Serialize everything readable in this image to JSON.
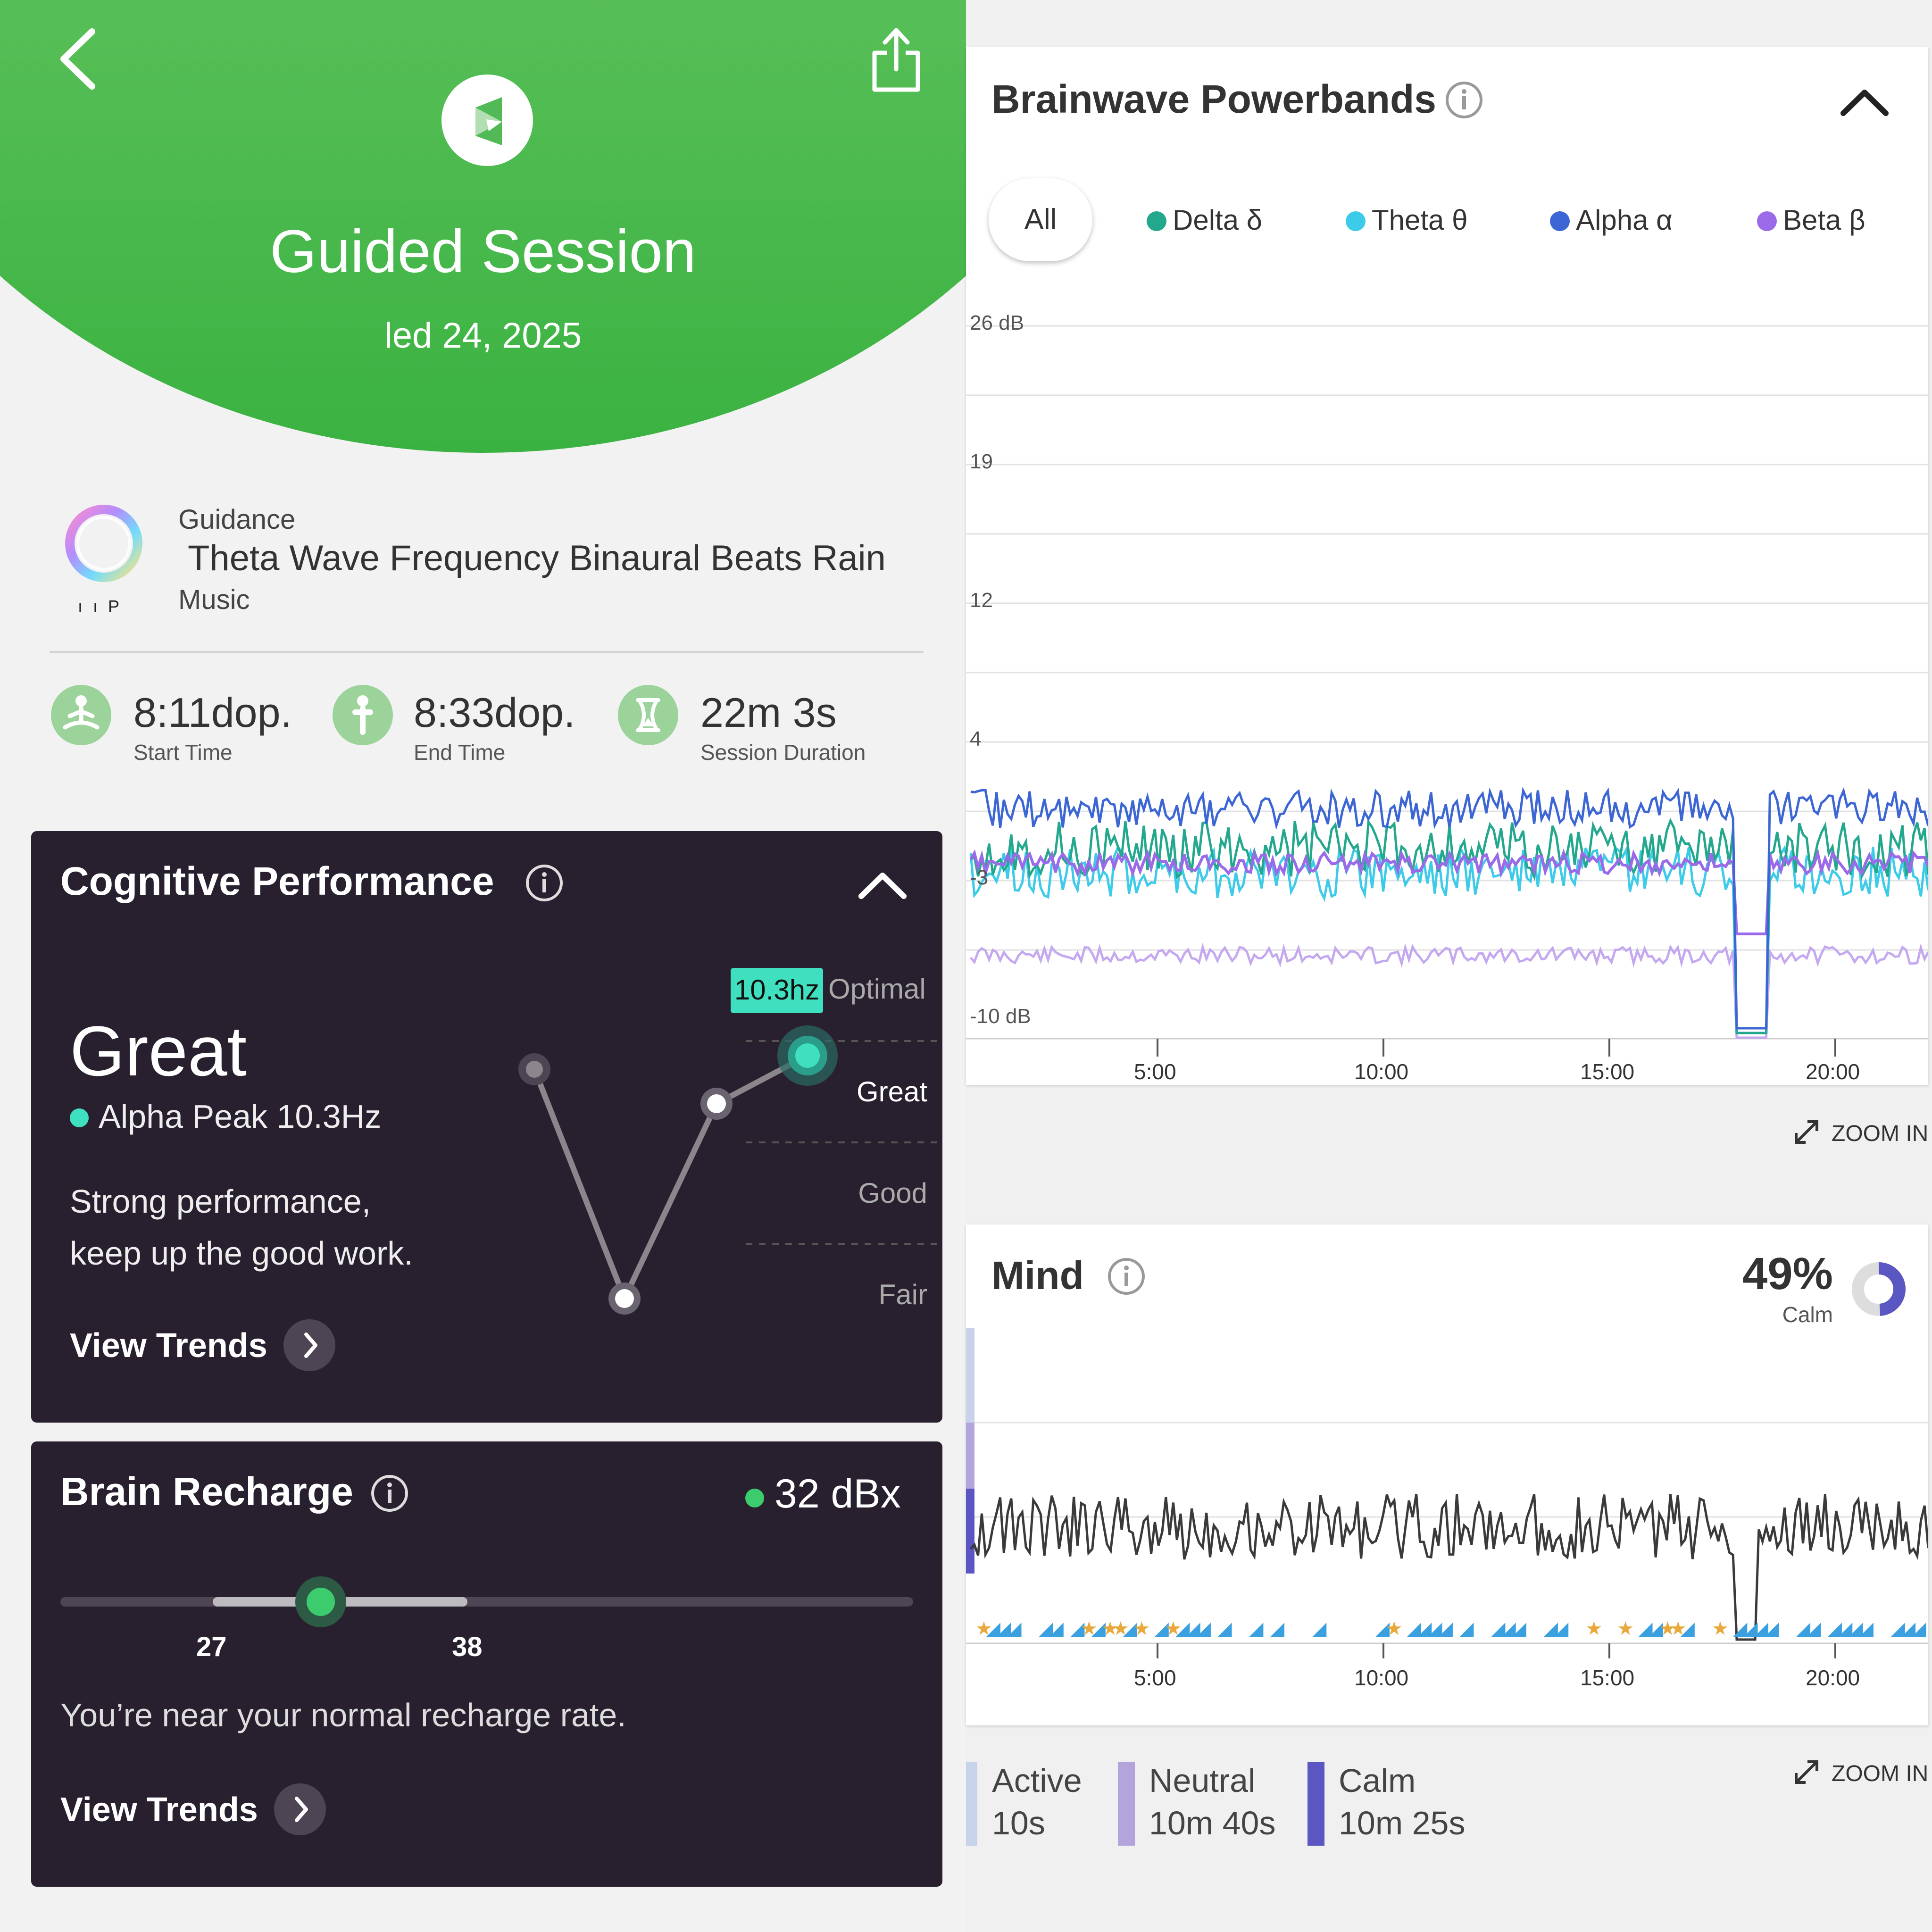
{
  "header": {
    "title": "Guided Session",
    "date": "led 24, 2025",
    "back_icon": "chevron-left-icon",
    "share_icon": "share-icon",
    "logo_icon": "muse-logo-icon"
  },
  "guidance": {
    "label": "Guidance",
    "name": "Theta Wave Frequency Binaural Beats Rain",
    "type": "Music",
    "art_caption": "ı ı P"
  },
  "stats": [
    {
      "value": "8:11dop.",
      "label": "Start Time",
      "icon": "meditation-icon"
    },
    {
      "value": "8:33dop.",
      "label": "End Time",
      "icon": "person-icon"
    },
    {
      "value": "22m 3s",
      "label": "Session Duration",
      "icon": "hourglass-icon"
    }
  ],
  "cognitive": {
    "title": "Cognitive Performance",
    "rating": "Great",
    "peak": "Alpha Peak 10.3Hz",
    "desc_line1": "Strong performance,",
    "desc_line2": "keep up the good work.",
    "trends": "View Trends",
    "badge": "10.3hz",
    "levels": [
      "Optimal",
      "Great",
      "Good",
      "Fair"
    ],
    "accent": "#3fe0c0"
  },
  "recharge": {
    "title": "Brain Recharge",
    "value": "32 dBx",
    "range_low": "27",
    "range_high": "38",
    "current": 32,
    "desc": "You’re near your normal recharge rate.",
    "trends": "View Trends"
  },
  "powerbands": {
    "title": "Brainwave Powerbands",
    "filters": [
      {
        "label": "All",
        "color": ""
      },
      {
        "label": "Delta δ",
        "color": "#24a88d"
      },
      {
        "label": "Theta θ",
        "color": "#3ccbe8"
      },
      {
        "label": "Alpha α",
        "color": "#3c66d4"
      },
      {
        "label": "Beta β",
        "color": "#9a6ae8"
      }
    ],
    "y_ticks": [
      "26 dB",
      "19",
      "12",
      "4",
      "-3",
      "-10 dB"
    ],
    "x_ticks": [
      "5:00",
      "10:00",
      "15:00",
      "20:00"
    ],
    "zoom": "ZOOM IN"
  },
  "mind": {
    "title": "Mind",
    "percent": "49%",
    "percent_label": "Calm",
    "calm_fraction": 0.49,
    "x_ticks": [
      "5:00",
      "10:00",
      "15:00",
      "20:00"
    ],
    "zoom": "ZOOM IN",
    "legend": [
      {
        "label": "Active",
        "value": "10s",
        "color": "#c8d2ea"
      },
      {
        "label": "Neutral",
        "value": "10m 40s",
        "color": "#b4a4dc"
      },
      {
        "label": "Calm",
        "value": "10m 25s",
        "color": "#5a56c2"
      }
    ]
  }
}
